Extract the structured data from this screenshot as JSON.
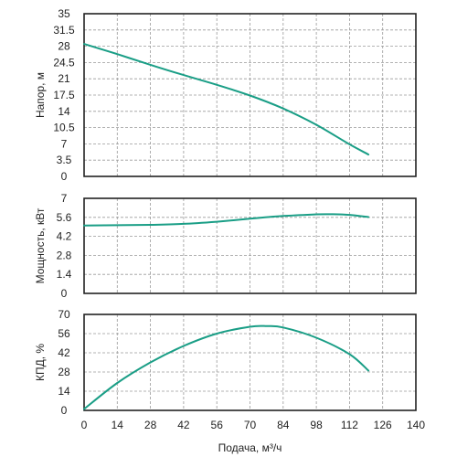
{
  "theme": {
    "curve_color": "#1a9e86",
    "axis_color": "#222222",
    "grid_color": "#9a9a9a"
  },
  "chart_data": [
    {
      "type": "line",
      "ylabel": "Напор, м",
      "ylim": [
        0,
        35
      ],
      "yticks": [
        "0",
        "3.5",
        "7",
        "10.5",
        "14",
        "17.5",
        "21",
        "24.5",
        "28",
        "31.5",
        "35"
      ],
      "xlim": [
        0,
        140
      ],
      "grid": true,
      "series": [
        {
          "x": [
            0,
            14,
            28,
            42,
            56,
            70,
            84,
            98,
            112,
            120
          ],
          "values": [
            28.5,
            26.3,
            24.0,
            21.8,
            19.7,
            17.4,
            14.6,
            11.1,
            6.9,
            4.7
          ]
        }
      ]
    },
    {
      "type": "line",
      "ylabel": "Мощность, кВт",
      "ylim": [
        0,
        7
      ],
      "yticks": [
        "0",
        "1.4",
        "2.8",
        "4.2",
        "5.6",
        "7"
      ],
      "xlim": [
        0,
        140
      ],
      "grid": true,
      "series": [
        {
          "x": [
            0,
            14,
            28,
            42,
            56,
            70,
            84,
            98,
            105,
            112,
            120
          ],
          "values": [
            5.0,
            5.02,
            5.05,
            5.12,
            5.28,
            5.5,
            5.7,
            5.82,
            5.83,
            5.78,
            5.62
          ]
        }
      ]
    },
    {
      "type": "line",
      "ylabel": "КПД, %",
      "xlabel": "Подача, м³/ч",
      "ylim": [
        0,
        70
      ],
      "yticks": [
        "0",
        "14",
        "28",
        "42",
        "56",
        "70"
      ],
      "xlim": [
        0,
        140
      ],
      "xticks": [
        "0",
        "14",
        "28",
        "42",
        "56",
        "70",
        "84",
        "98",
        "112",
        "126",
        "140"
      ],
      "grid": true,
      "series": [
        {
          "x": [
            0,
            14,
            28,
            42,
            56,
            70,
            77,
            84,
            98,
            112,
            120
          ],
          "values": [
            1,
            20,
            35,
            47,
            56,
            61,
            61.5,
            60.5,
            53,
            41,
            29
          ]
        }
      ]
    }
  ]
}
